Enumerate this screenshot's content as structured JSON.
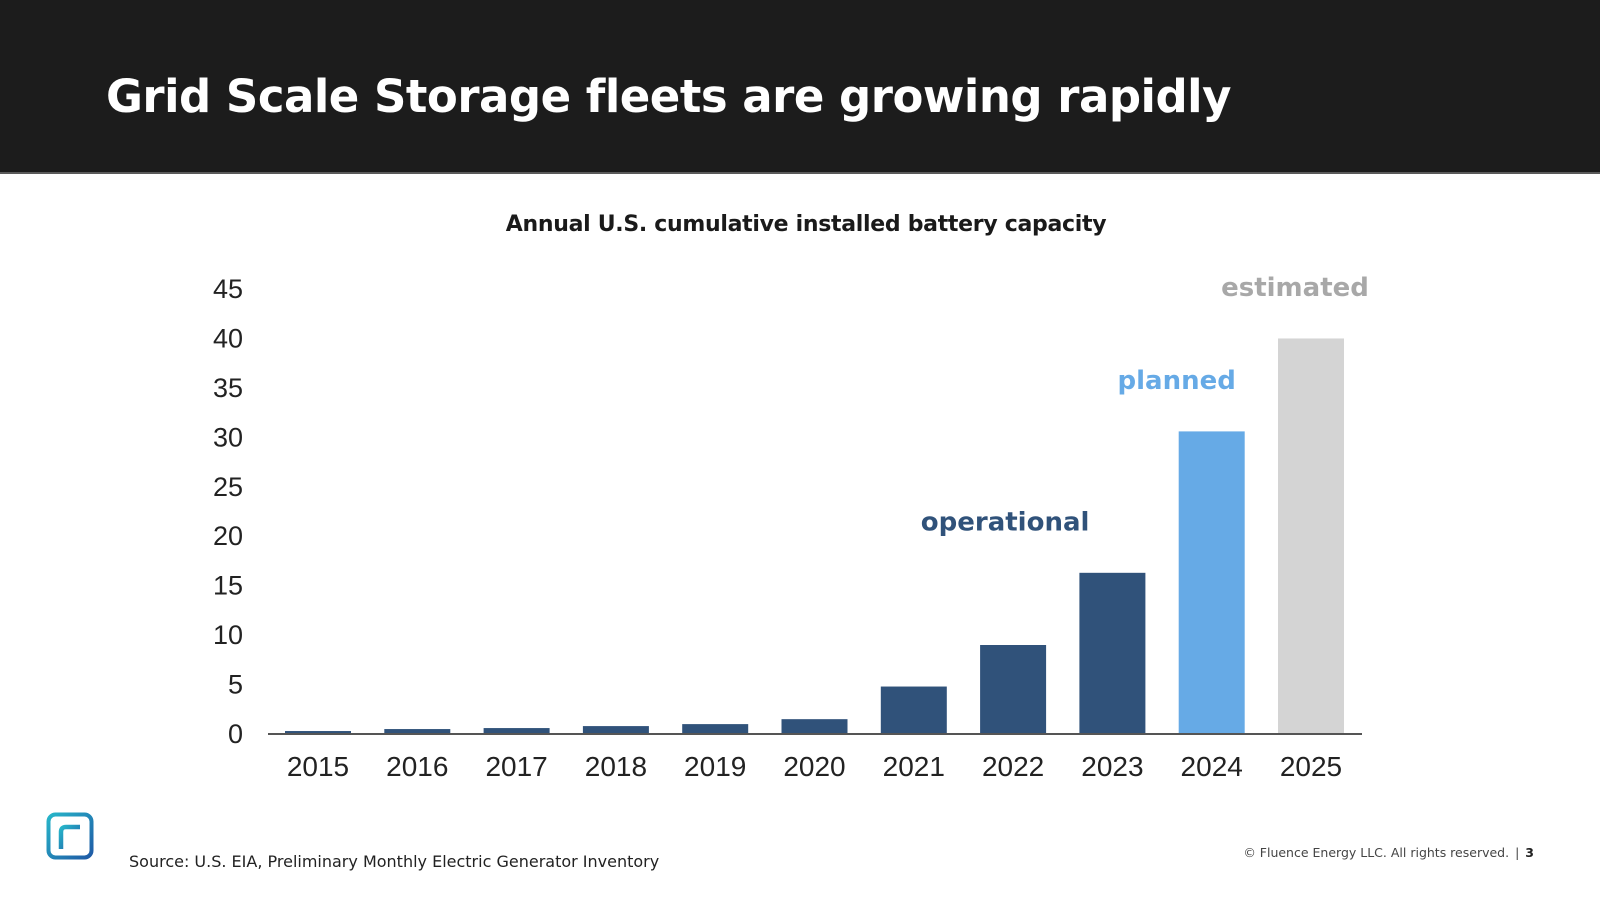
{
  "slide": {
    "title": "Grid Scale Storage fleets are growing rapidly",
    "source": "Source: U.S. EIA, Preliminary Monthly Electric Generator Inventory",
    "copyright": "© Fluence Energy LLC. All rights reserved.",
    "separator": "|",
    "page_number": "3",
    "logo_icon": "fluence-logo-icon"
  },
  "colors": {
    "header_bg": "#1c1c1c",
    "operational": "#30527a",
    "planned": "#66aae6",
    "estimated": "#d4d4d4",
    "estimated_label": "#a8a8a8",
    "axis": "#555555",
    "logo_gradient_start": "#27b5c9",
    "logo_gradient_end": "#1f5aa6"
  },
  "chart_data": {
    "type": "bar",
    "title": "Annual U.S. cumulative installed battery capacity",
    "xlabel": "",
    "ylabel": "",
    "ylim": [
      0,
      45
    ],
    "yticks": [
      "0",
      "5",
      "10",
      "15",
      "20",
      "25",
      "30",
      "35",
      "40",
      "45"
    ],
    "grid": false,
    "categories": [
      "2015",
      "2016",
      "2017",
      "2018",
      "2019",
      "2020",
      "2021",
      "2022",
      "2023",
      "2024",
      "2025"
    ],
    "values": [
      0.3,
      0.5,
      0.6,
      0.8,
      1.0,
      1.5,
      4.8,
      9.0,
      16.3,
      30.6,
      40.0
    ],
    "bar_status": [
      "operational",
      "operational",
      "operational",
      "operational",
      "operational",
      "operational",
      "operational",
      "operational",
      "operational",
      "planned",
      "estimated"
    ],
    "annotations": [
      {
        "text": "operational",
        "status": "operational"
      },
      {
        "text": "planned",
        "status": "planned"
      },
      {
        "text": "estimated",
        "status": "estimated"
      }
    ]
  }
}
